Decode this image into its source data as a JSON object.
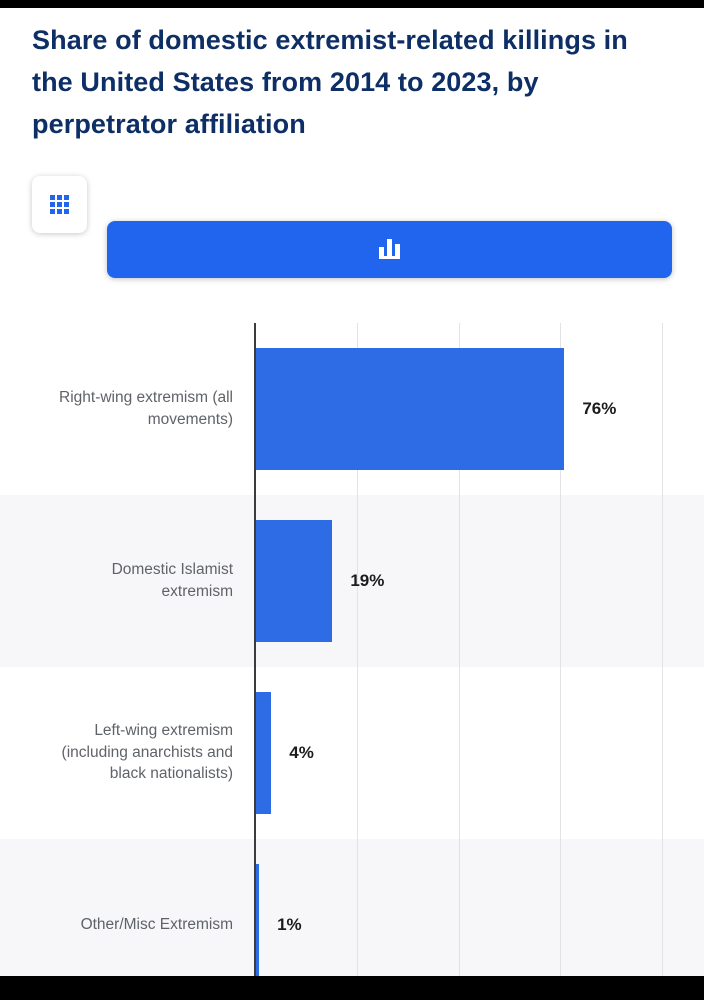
{
  "page": {
    "title": "Share of domestic extremist-related killings in the United States from 2014 to 2023, by perpetrator affiliation"
  },
  "toolbar": {
    "buttons": [
      {
        "name": "table-view",
        "icon": "grid-icon",
        "active": false
      },
      {
        "name": "chart-view",
        "icon": "bar-chart-icon",
        "active": true
      }
    ]
  },
  "chart_data": {
    "type": "bar",
    "orientation": "horizontal",
    "title": "Share of domestic extremist-related killings in the United States from 2014 to 2023, by perpetrator affiliation",
    "categories": [
      "Right-wing extremism (all movements)",
      "Domestic Islamist extremism",
      "Left-wing extremism (including anarchists and black nationalists)",
      "Other/Misc Extremism"
    ],
    "values": [
      76,
      19,
      4,
      1
    ],
    "value_labels": [
      "76%",
      "19%",
      "4%",
      "1%"
    ],
    "xlabel": "",
    "ylabel": "",
    "xlim": [
      0,
      100
    ],
    "gridlines": [
      25,
      50,
      75,
      100
    ],
    "grid": true,
    "legend": false,
    "bar_color": "#2e6ce6"
  },
  "colors": {
    "title_text": "#0d2f66",
    "bar": "#2e6ce6",
    "active_button": "#2165ee",
    "category_text": "#5f6368",
    "value_text": "#1c1c1c",
    "row_alt_background": "#f7f7f9",
    "axis": "#3c3c3c",
    "gridline": "#e3e3e6"
  }
}
